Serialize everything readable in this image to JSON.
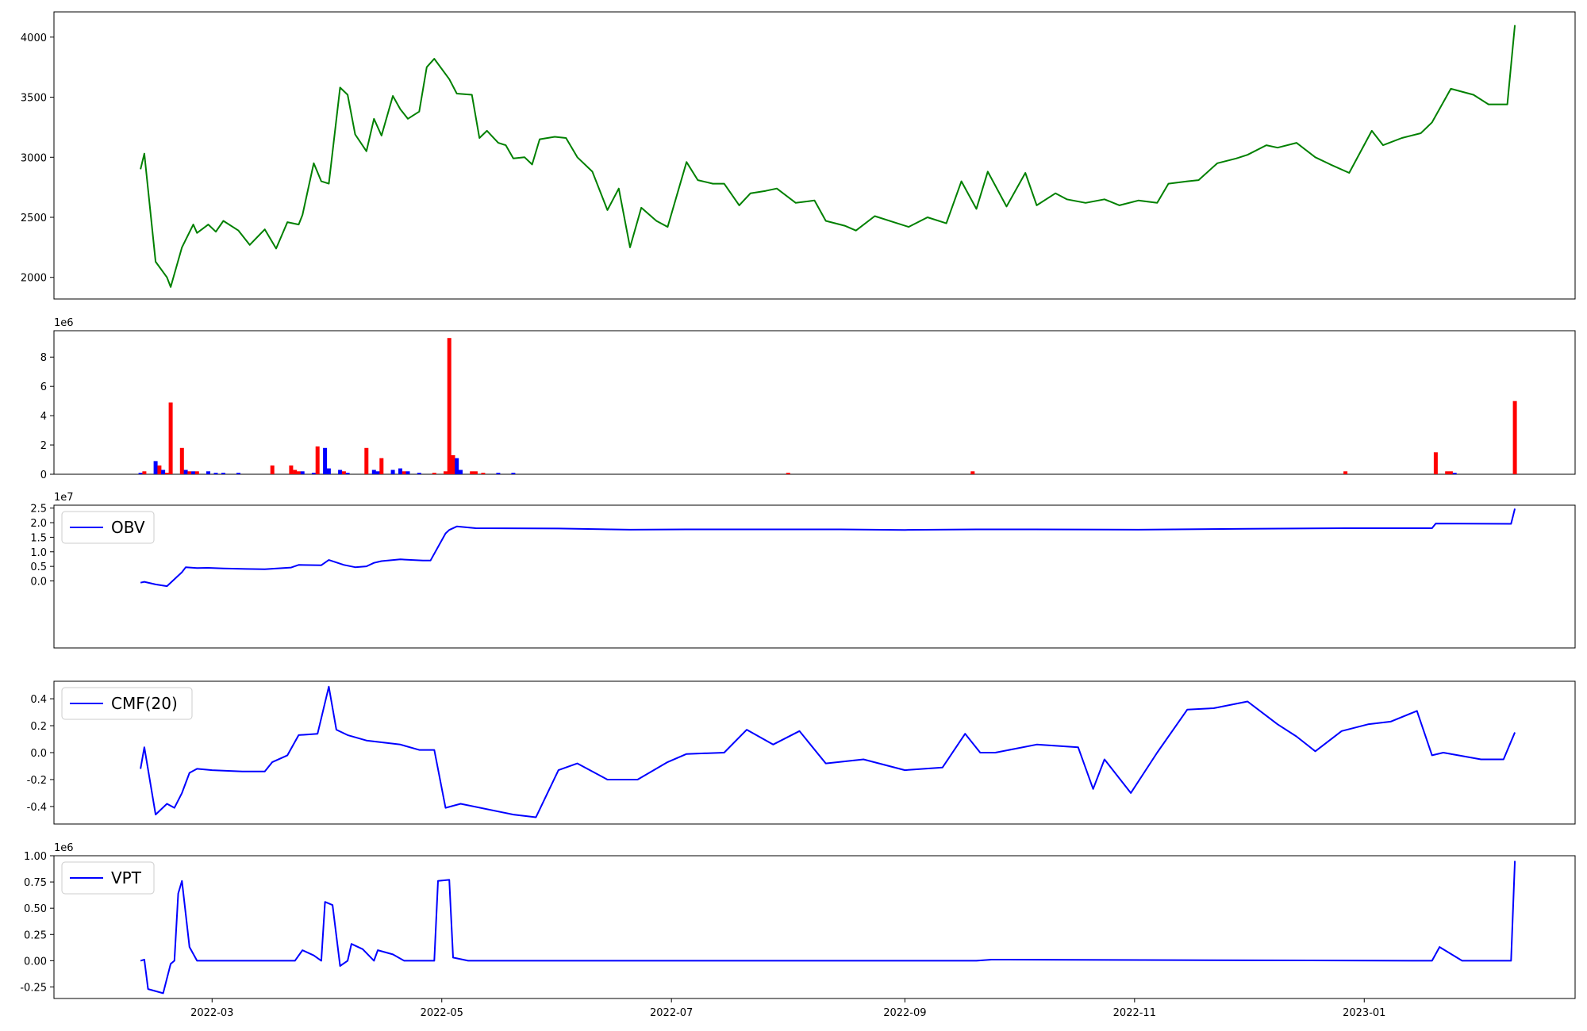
{
  "figure": {
    "xticks": [
      "2022-03",
      "2022-05",
      "2022-07",
      "2022-09",
      "2022-11",
      "2023-01"
    ]
  },
  "chart_data": [
    {
      "type": "line",
      "panel": "price",
      "color": "#008000",
      "x": [
        "2022-02-10",
        "2022-02-11",
        "2022-02-14",
        "2022-02-17",
        "2022-02-18",
        "2022-02-21",
        "2022-02-24",
        "2022-02-25",
        "2022-02-28",
        "2022-03-02",
        "2022-03-04",
        "2022-03-08",
        "2022-03-11",
        "2022-03-15",
        "2022-03-18",
        "2022-03-21",
        "2022-03-24",
        "2022-03-25",
        "2022-03-28",
        "2022-03-30",
        "2022-04-01",
        "2022-04-04",
        "2022-04-06",
        "2022-04-08",
        "2022-04-11",
        "2022-04-13",
        "2022-04-15",
        "2022-04-18",
        "2022-04-20",
        "2022-04-22",
        "2022-04-25",
        "2022-04-27",
        "2022-04-29",
        "2022-05-03",
        "2022-05-05",
        "2022-05-09",
        "2022-05-11",
        "2022-05-13",
        "2022-05-16",
        "2022-05-18",
        "2022-05-20",
        "2022-05-23",
        "2022-05-25",
        "2022-05-27",
        "2022-05-31",
        "2022-06-03",
        "2022-06-06",
        "2022-06-10",
        "2022-06-14",
        "2022-06-17",
        "2022-06-20",
        "2022-06-23",
        "2022-06-27",
        "2022-06-30",
        "2022-07-05",
        "2022-07-08",
        "2022-07-12",
        "2022-07-15",
        "2022-07-19",
        "2022-07-22",
        "2022-07-26",
        "2022-07-29",
        "2022-08-03",
        "2022-08-08",
        "2022-08-11",
        "2022-08-16",
        "2022-08-19",
        "2022-08-24",
        "2022-08-29",
        "2022-09-02",
        "2022-09-07",
        "2022-09-12",
        "2022-09-16",
        "2022-09-20",
        "2022-09-23",
        "2022-09-28",
        "2022-10-03",
        "2022-10-06",
        "2022-10-11",
        "2022-10-14",
        "2022-10-19",
        "2022-10-24",
        "2022-10-28",
        "2022-11-02",
        "2022-11-07",
        "2022-11-10",
        "2022-11-15",
        "2022-11-18",
        "2022-11-23",
        "2022-11-28",
        "2022-12-01",
        "2022-12-06",
        "2022-12-09",
        "2022-12-14",
        "2022-12-19",
        "2022-12-23",
        "2022-12-28",
        "2023-01-03",
        "2023-01-06",
        "2023-01-11",
        "2023-01-16",
        "2023-01-19",
        "2023-01-24",
        "2023-01-30",
        "2023-02-03",
        "2023-02-08",
        "2023-02-10"
      ],
      "y": [
        2900,
        3030,
        2130,
        2000,
        1920,
        2250,
        2440,
        2370,
        2440,
        2380,
        2470,
        2390,
        2270,
        2400,
        2240,
        2460,
        2440,
        2520,
        2950,
        2800,
        2780,
        3580,
        3520,
        3190,
        3050,
        3320,
        3180,
        3510,
        3400,
        3320,
        3380,
        3750,
        3820,
        3650,
        3530,
        3520,
        3160,
        3220,
        3120,
        3100,
        2990,
        3000,
        2940,
        3150,
        3170,
        3160,
        3000,
        2880,
        2560,
        2740,
        2250,
        2580,
        2470,
        2420,
        2960,
        2810,
        2780,
        2780,
        2600,
        2700,
        2720,
        2740,
        2620,
        2640,
        2470,
        2430,
        2390,
        2510,
        2460,
        2420,
        2500,
        2450,
        2800,
        2570,
        2880,
        2590,
        2870,
        2600,
        2700,
        2650,
        2620,
        2650,
        2600,
        2640,
        2620,
        2780,
        2800,
        2810,
        2950,
        2990,
        3020,
        3100,
        3080,
        3120,
        3000,
        2940,
        2870,
        3220,
        3100,
        3160,
        3200,
        3290,
        3570,
        3520,
        3440,
        3440,
        4100
      ],
      "ylim": [
        1820,
        4210
      ],
      "yticks": [
        2000,
        2500,
        3000,
        3500,
        4000
      ]
    },
    {
      "type": "bar",
      "panel": "volume",
      "offset_label": "1e6",
      "ylim": [
        0,
        9.8
      ],
      "yticks": [
        0,
        2,
        4,
        6,
        8
      ],
      "colors": {
        "up": "#ff0000",
        "down": "#0000ff"
      },
      "x": [
        "2022-02-10",
        "2022-02-11",
        "2022-02-14",
        "2022-02-15",
        "2022-02-16",
        "2022-02-17",
        "2022-02-18",
        "2022-02-21",
        "2022-02-22",
        "2022-02-23",
        "2022-02-24",
        "2022-02-25",
        "2022-02-28",
        "2022-03-02",
        "2022-03-04",
        "2022-03-08",
        "2022-03-17",
        "2022-03-22",
        "2022-03-23",
        "2022-03-24",
        "2022-03-25",
        "2022-03-28",
        "2022-03-29",
        "2022-03-31",
        "2022-04-01",
        "2022-04-04",
        "2022-04-05",
        "2022-04-06",
        "2022-04-11",
        "2022-04-13",
        "2022-04-14",
        "2022-04-15",
        "2022-04-18",
        "2022-04-20",
        "2022-04-21",
        "2022-04-22",
        "2022-04-25",
        "2022-04-29",
        "2022-05-02",
        "2022-05-03",
        "2022-05-04",
        "2022-05-05",
        "2022-05-06",
        "2022-05-09",
        "2022-05-10",
        "2022-05-12",
        "2022-05-16",
        "2022-05-20",
        "2022-08-01",
        "2022-09-19",
        "2022-12-27",
        "2023-01-20",
        "2023-01-23",
        "2023-01-24",
        "2023-01-25",
        "2023-02-10"
      ],
      "values": [
        0.1,
        0.2,
        0.9,
        0.6,
        0.3,
        0.1,
        4.9,
        1.8,
        0.3,
        0.2,
        0.2,
        0.2,
        0.2,
        0.1,
        0.1,
        0.1,
        0.6,
        0.6,
        0.3,
        0.2,
        0.2,
        0.1,
        1.9,
        1.8,
        0.4,
        0.3,
        0.2,
        0.1,
        1.8,
        0.3,
        0.2,
        1.1,
        0.3,
        0.4,
        0.2,
        0.2,
        0.1,
        0.1,
        0.2,
        9.3,
        1.3,
        1.1,
        0.3,
        0.2,
        0.2,
        0.1,
        0.1,
        0.1,
        0.1,
        0.2,
        0.2,
        1.5,
        0.2,
        0.2,
        0.1,
        5.0
      ],
      "directions": [
        "d",
        "u",
        "d",
        "u",
        "d",
        "u",
        "u",
        "u",
        "d",
        "u",
        "d",
        "u",
        "d",
        "d",
        "d",
        "d",
        "u",
        "u",
        "u",
        "u",
        "d",
        "d",
        "u",
        "d",
        "d",
        "d",
        "u",
        "d",
        "u",
        "d",
        "d",
        "u",
        "d",
        "d",
        "u",
        "d",
        "d",
        "u",
        "u",
        "u",
        "u",
        "d",
        "d",
        "u",
        "u",
        "u",
        "d",
        "d",
        "u",
        "u",
        "u",
        "u",
        "u",
        "u",
        "d",
        "u"
      ]
    },
    {
      "type": "line",
      "panel": "obv",
      "color": "#0000ff",
      "offset_label": "1e7",
      "ylim": [
        -2.3,
        2.6
      ],
      "yticks": [
        0.0,
        0.5,
        1.0,
        1.5,
        2.0,
        2.5
      ],
      "legend": "OBV",
      "legend_position": "upper-left",
      "x": [
        "2022-02-10",
        "2022-02-11",
        "2022-02-14",
        "2022-02-17",
        "2022-02-21",
        "2022-02-22",
        "2022-02-25",
        "2022-02-28",
        "2022-03-04",
        "2022-03-10",
        "2022-03-15",
        "2022-03-17",
        "2022-03-22",
        "2022-03-24",
        "2022-03-30",
        "2022-04-01",
        "2022-04-05",
        "2022-04-08",
        "2022-04-11",
        "2022-04-13",
        "2022-04-15",
        "2022-04-20",
        "2022-04-26",
        "2022-04-28",
        "2022-05-02",
        "2022-05-03",
        "2022-05-05",
        "2022-05-10",
        "2022-06-01",
        "2022-06-20",
        "2022-07-05",
        "2022-08-15",
        "2022-09-01",
        "2022-09-20",
        "2022-10-05",
        "2022-11-02",
        "2022-12-01",
        "2022-12-27",
        "2023-01-19",
        "2023-01-20",
        "2023-02-09",
        "2023-02-10"
      ],
      "y": [
        -0.06,
        -0.03,
        -0.12,
        -0.18,
        0.3,
        0.47,
        0.44,
        0.45,
        0.43,
        0.41,
        0.4,
        0.42,
        0.46,
        0.55,
        0.54,
        0.72,
        0.55,
        0.47,
        0.5,
        0.62,
        0.68,
        0.74,
        0.7,
        0.7,
        1.63,
        1.75,
        1.87,
        1.81,
        1.8,
        1.76,
        1.77,
        1.77,
        1.75,
        1.77,
        1.77,
        1.76,
        1.79,
        1.81,
        1.81,
        1.97,
        1.96,
        2.48
      ]
    },
    {
      "type": "line",
      "panel": "cmf",
      "color": "#0000ff",
      "ylim": [
        -0.53,
        0.53
      ],
      "yticks": [
        -0.4,
        -0.2,
        0.0,
        0.2,
        0.4
      ],
      "legend": "CMF(20)",
      "legend_position": "upper-left",
      "x": [
        "2022-02-10",
        "2022-02-11",
        "2022-02-14",
        "2022-02-17",
        "2022-02-19",
        "2022-02-21",
        "2022-02-23",
        "2022-02-25",
        "2022-03-01",
        "2022-03-09",
        "2022-03-15",
        "2022-03-17",
        "2022-03-21",
        "2022-03-24",
        "2022-03-29",
        "2022-04-01",
        "2022-04-03",
        "2022-04-06",
        "2022-04-11",
        "2022-04-20",
        "2022-04-25",
        "2022-04-29",
        "2022-05-02",
        "2022-05-06",
        "2022-05-20",
        "2022-05-26",
        "2022-06-01",
        "2022-06-06",
        "2022-06-14",
        "2022-06-22",
        "2022-06-30",
        "2022-07-05",
        "2022-07-15",
        "2022-07-21",
        "2022-07-28",
        "2022-08-04",
        "2022-08-11",
        "2022-08-21",
        "2022-09-01",
        "2022-09-11",
        "2022-09-17",
        "2022-09-21",
        "2022-09-25",
        "2022-10-06",
        "2022-10-17",
        "2022-10-21",
        "2022-10-24",
        "2022-10-31",
        "2022-11-07",
        "2022-11-15",
        "2022-11-22",
        "2022-12-01",
        "2022-12-09",
        "2022-12-14",
        "2022-12-19",
        "2022-12-26",
        "2023-01-02",
        "2023-01-08",
        "2023-01-15",
        "2023-01-19",
        "2023-01-22",
        "2023-02-01",
        "2023-02-07",
        "2023-02-10"
      ],
      "y": [
        -0.12,
        0.04,
        -0.46,
        -0.38,
        -0.41,
        -0.3,
        -0.15,
        -0.12,
        -0.13,
        -0.14,
        -0.14,
        -0.07,
        -0.02,
        0.13,
        0.14,
        0.49,
        0.17,
        0.13,
        0.09,
        0.06,
        0.02,
        0.02,
        -0.41,
        -0.38,
        -0.46,
        -0.48,
        -0.13,
        -0.08,
        -0.2,
        -0.2,
        -0.07,
        -0.01,
        0.0,
        0.17,
        0.06,
        0.16,
        -0.08,
        -0.05,
        -0.13,
        -0.11,
        0.14,
        0.0,
        0.0,
        0.06,
        0.04,
        -0.27,
        -0.05,
        -0.3,
        0.0,
        0.32,
        0.33,
        0.38,
        0.21,
        0.12,
        0.01,
        0.16,
        0.21,
        0.23,
        0.31,
        -0.02,
        0.0,
        -0.05,
        -0.05,
        0.15
      ]
    },
    {
      "type": "line",
      "panel": "vpt",
      "color": "#0000ff",
      "offset_label": "1e6",
      "ylim": [
        -0.36,
        1.0
      ],
      "yticks": [
        -0.25,
        0.0,
        0.25,
        0.5,
        0.75,
        1.0
      ],
      "legend": "VPT",
      "legend_position": "upper-left",
      "x": [
        "2022-02-10",
        "2022-02-11",
        "2022-02-12",
        "2022-02-16",
        "2022-02-18",
        "2022-02-19",
        "2022-02-20",
        "2022-02-21",
        "2022-02-23",
        "2022-02-25",
        "2022-03-03",
        "2022-03-10",
        "2022-03-23",
        "2022-03-25",
        "2022-03-28",
        "2022-03-30",
        "2022-03-31",
        "2022-04-02",
        "2022-04-04",
        "2022-04-06",
        "2022-04-07",
        "2022-04-10",
        "2022-04-13",
        "2022-04-14",
        "2022-04-18",
        "2022-04-21",
        "2022-04-29",
        "2022-04-30",
        "2022-05-03",
        "2022-05-04",
        "2022-05-08",
        "2022-05-15",
        "2022-09-20",
        "2022-09-24",
        "2023-01-19",
        "2023-01-21",
        "2023-01-27",
        "2023-02-09",
        "2023-02-10"
      ],
      "y": [
        0.0,
        0.01,
        -0.27,
        -0.31,
        -0.03,
        0.0,
        0.64,
        0.76,
        0.13,
        0.0,
        0.0,
        0.0,
        0.0,
        0.1,
        0.05,
        0.0,
        0.56,
        0.53,
        -0.05,
        0.0,
        0.16,
        0.11,
        0.0,
        0.1,
        0.06,
        0.0,
        0.0,
        0.76,
        0.77,
        0.03,
        0.0,
        0.0,
        0.0,
        0.01,
        0.0,
        0.13,
        0.0,
        0.0,
        0.95
      ]
    }
  ]
}
